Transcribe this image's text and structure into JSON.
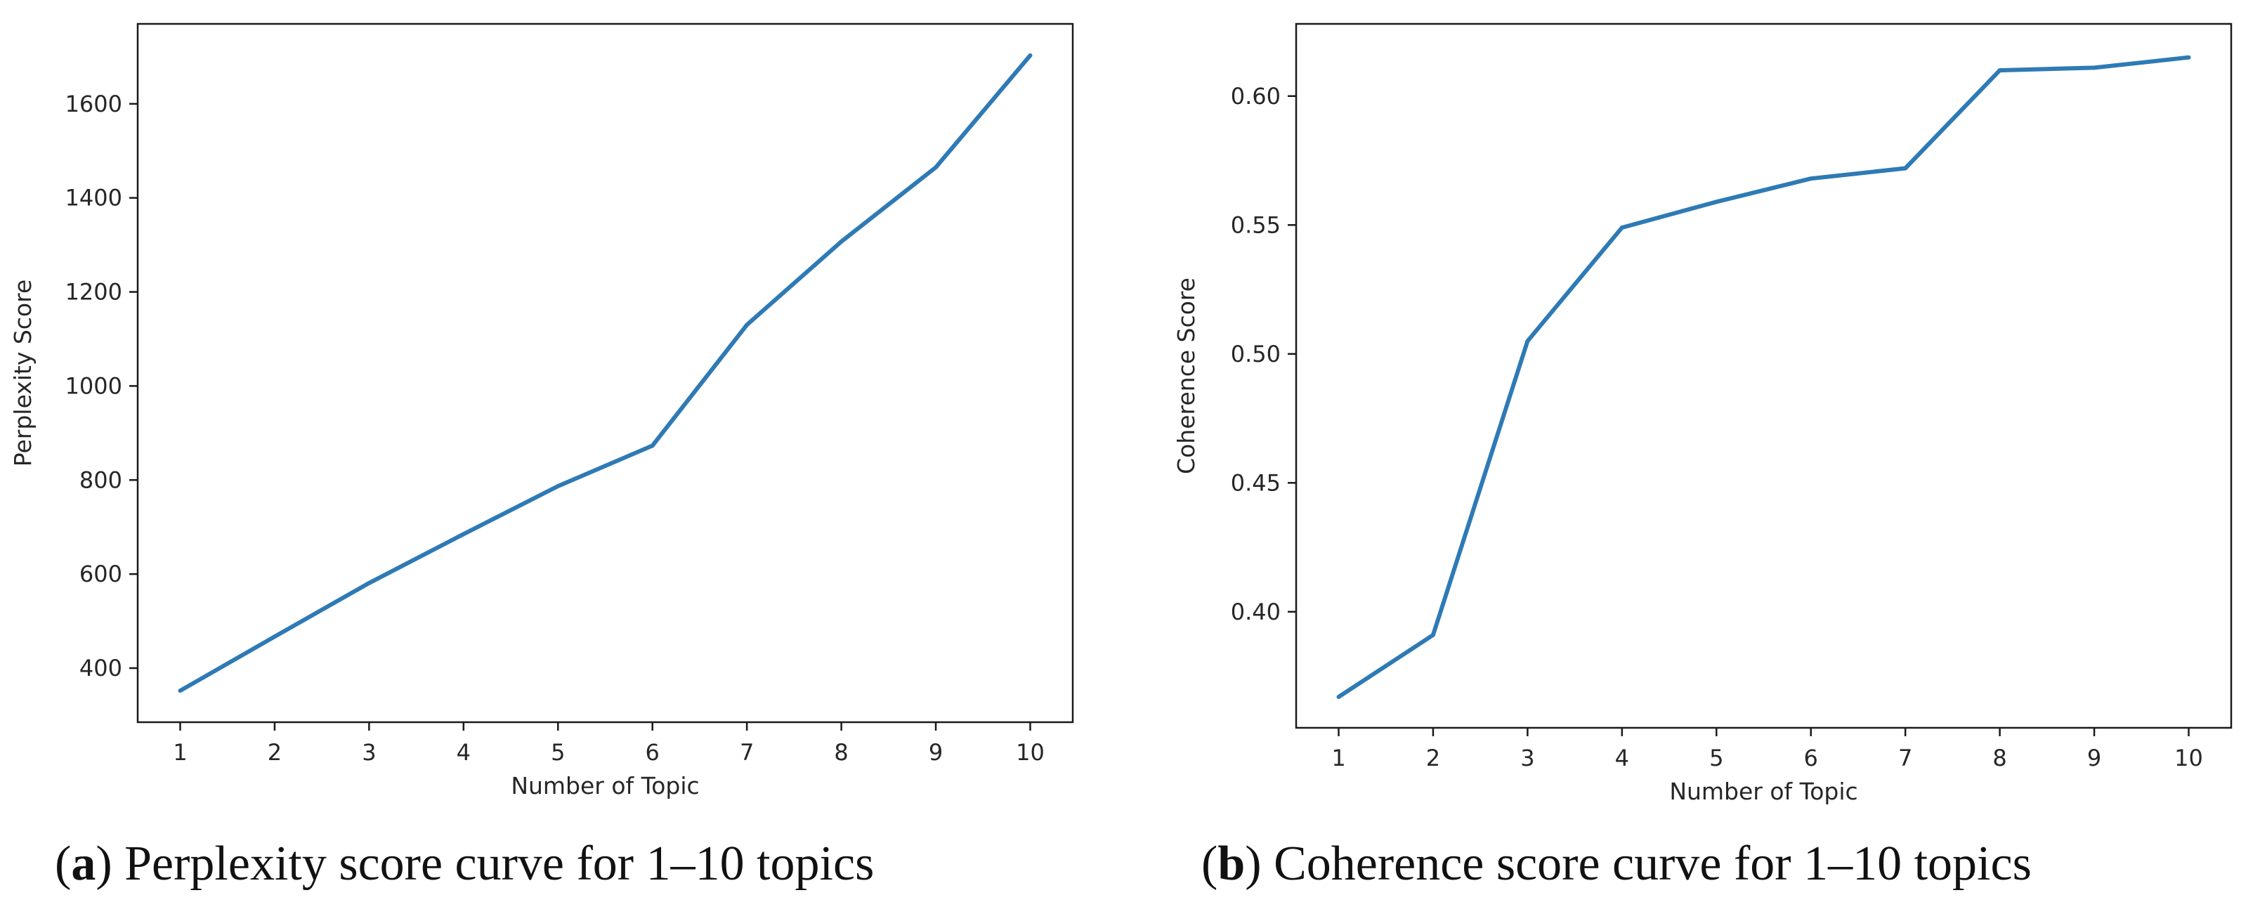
{
  "chart_data": [
    {
      "type": "line",
      "title": "",
      "xlabel": "Number of Topic",
      "ylabel": "Perplexity Score",
      "x": [
        1,
        2,
        3,
        4,
        5,
        6,
        7,
        8,
        9,
        10
      ],
      "series": [
        {
          "name": "Perplexity",
          "color": "#2e7ab5",
          "values": [
            352,
            467,
            581,
            685,
            787,
            873,
            1130,
            1307,
            1465,
            1703
          ]
        }
      ],
      "xticks": [
        "1",
        "2",
        "3",
        "4",
        "5",
        "6",
        "7",
        "8",
        "9",
        "10"
      ],
      "yticks": [
        "400",
        "600",
        "800",
        "1000",
        "1200",
        "1400",
        "1600"
      ],
      "ytick_values": [
        400,
        600,
        800,
        1000,
        1200,
        1400,
        1600
      ],
      "xlim": [
        0.55,
        10.45
      ],
      "ylim": [
        285,
        1770
      ],
      "grid": false,
      "caption_tag": "a",
      "caption_text": "Perplexity score curve for 1–10 topics"
    },
    {
      "type": "line",
      "title": "",
      "xlabel": "Number of Topic",
      "ylabel": "Coherence Score",
      "x": [
        1,
        2,
        3,
        4,
        5,
        6,
        7,
        8,
        9,
        10
      ],
      "series": [
        {
          "name": "Coherence",
          "color": "#2e7ab5",
          "values": [
            0.367,
            0.391,
            0.505,
            0.549,
            0.559,
            0.568,
            0.572,
            0.61,
            0.611,
            0.615
          ]
        }
      ],
      "xticks": [
        "1",
        "2",
        "3",
        "4",
        "5",
        "6",
        "7",
        "8",
        "9",
        "10"
      ],
      "yticks": [
        "0.40",
        "0.45",
        "0.50",
        "0.55",
        "0.60"
      ],
      "ytick_values": [
        0.4,
        0.45,
        0.5,
        0.55,
        0.6
      ],
      "xlim": [
        0.55,
        10.45
      ],
      "ylim": [
        0.355,
        0.628
      ],
      "grid": false,
      "caption_tag": "b",
      "caption_text": "Coherence score curve for 1–10 topics"
    }
  ]
}
